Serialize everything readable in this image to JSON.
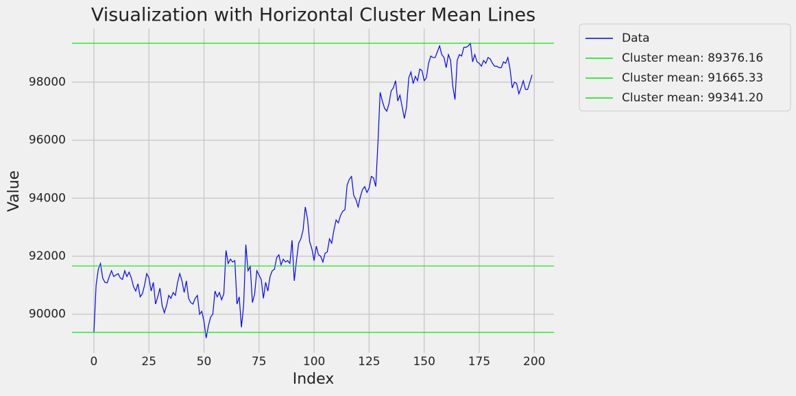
{
  "chart_data": {
    "type": "line",
    "title": "Visualization with Horizontal Cluster Mean Lines",
    "x_label": "Index",
    "y_label": "Value",
    "x": [
      0,
      1,
      2,
      3,
      4,
      5,
      6,
      7,
      8,
      9,
      10,
      11,
      12,
      13,
      14,
      15,
      16,
      17,
      18,
      19,
      20,
      21,
      22,
      23,
      24,
      25,
      26,
      27,
      28,
      29,
      30,
      31,
      32,
      33,
      34,
      35,
      36,
      37,
      38,
      39,
      40,
      41,
      42,
      43,
      44,
      45,
      46,
      47,
      48,
      49,
      50,
      51,
      52,
      53,
      54,
      55,
      56,
      57,
      58,
      59,
      60,
      61,
      62,
      63,
      64,
      65,
      66,
      67,
      68,
      69,
      70,
      71,
      72,
      73,
      74,
      75,
      76,
      77,
      78,
      79,
      80,
      81,
      82,
      83,
      84,
      85,
      86,
      87,
      88,
      89,
      90,
      91,
      92,
      93,
      94,
      95,
      96,
      97,
      98,
      99,
      100,
      101,
      102,
      103,
      104,
      105,
      106,
      107,
      108,
      109,
      110,
      111,
      112,
      113,
      114,
      115,
      116,
      117,
      118,
      119,
      120,
      121,
      122,
      123,
      124,
      125,
      126,
      127,
      128,
      129,
      130,
      131,
      132,
      133,
      134,
      135,
      136,
      137,
      138,
      139,
      140,
      141,
      142,
      143,
      144,
      145,
      146,
      147,
      148,
      149,
      150,
      151,
      152,
      153,
      154,
      155,
      156,
      157,
      158,
      159,
      160,
      161,
      162,
      163,
      164,
      165,
      166,
      167,
      168,
      169,
      170,
      171,
      172,
      173,
      174,
      175,
      176,
      177,
      178,
      179,
      180,
      181,
      182,
      183,
      184,
      185,
      186,
      187,
      188,
      189,
      190,
      191,
      192,
      193,
      194,
      195,
      196,
      197,
      198,
      199
    ],
    "series": [
      {
        "name": "Data",
        "color": "#0000ff",
        "values": [
          89376,
          91000,
          91550,
          91750,
          91250,
          91100,
          91080,
          91300,
          91500,
          91300,
          91350,
          91400,
          91250,
          91200,
          91500,
          91300,
          91450,
          91250,
          90950,
          90800,
          91050,
          90600,
          90700,
          91000,
          91400,
          91250,
          90800,
          91100,
          90350,
          90600,
          90900,
          90300,
          90050,
          90300,
          90650,
          90550,
          90750,
          90650,
          91100,
          91400,
          91150,
          90750,
          91150,
          90550,
          90400,
          90350,
          90550,
          90650,
          90000,
          90100,
          89750,
          89180,
          89600,
          89900,
          90000,
          90800,
          90600,
          90750,
          90500,
          90700,
          92200,
          91750,
          91900,
          91800,
          91850,
          90350,
          90600,
          89550,
          90300,
          92400,
          91500,
          91650,
          90400,
          90700,
          91500,
          91350,
          91200,
          90550,
          91100,
          90800,
          91300,
          91500,
          91550,
          91950,
          92050,
          91700,
          91900,
          91800,
          91850,
          91750,
          92550,
          91150,
          91850,
          92450,
          92600,
          92900,
          93700,
          93300,
          92500,
          92250,
          91850,
          92350,
          92050,
          92000,
          91800,
          92100,
          92150,
          92600,
          92450,
          92900,
          93250,
          93150,
          93400,
          93550,
          93600,
          94450,
          94650,
          94750,
          94100,
          93950,
          93700,
          94050,
          94300,
          94400,
          94200,
          94350,
          94750,
          94700,
          94400,
          95900,
          97650,
          97350,
          97100,
          97000,
          97250,
          97700,
          97800,
          98050,
          97350,
          97550,
          97150,
          96750,
          97150,
          98150,
          98350,
          97950,
          98200,
          98050,
          98450,
          98400,
          98050,
          98150,
          98650,
          98900,
          98850,
          98850,
          99050,
          99250,
          98950,
          98850,
          98500,
          98950,
          98750,
          97850,
          97400,
          98750,
          98950,
          98900,
          99200,
          99200,
          99250,
          99341,
          98700,
          98950,
          98700,
          98650,
          98550,
          98750,
          98650,
          98850,
          98800,
          98650,
          98550,
          98550,
          98500,
          98500,
          98700,
          98650,
          98850,
          98450,
          97800,
          98000,
          97950,
          97600,
          97800,
          98050,
          97750,
          97750,
          98000,
          98250
        ]
      }
    ],
    "hlines": [
      {
        "name": "Cluster mean: 89376.16",
        "value": 89376.16,
        "color": "#00ee00"
      },
      {
        "name": "Cluster mean: 91665.33",
        "value": 91665.33,
        "color": "#00ee00"
      },
      {
        "name": "Cluster mean: 99341.20",
        "value": 99341.2,
        "color": "#00ee00"
      }
    ],
    "xlim": [
      -9.95,
      208.95
    ],
    "ylim": [
      88670,
      99850
    ],
    "xticks": [
      0,
      25,
      50,
      75,
      100,
      125,
      150,
      175,
      200
    ],
    "yticks": [
      90000,
      92000,
      94000,
      96000,
      98000
    ],
    "grid": true,
    "legend": "outside upper right"
  }
}
